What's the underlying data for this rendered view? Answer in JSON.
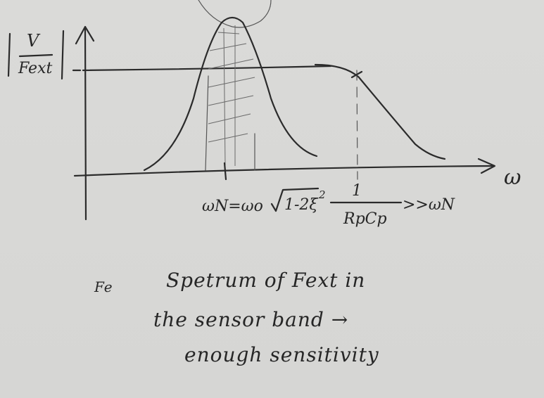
{
  "diagram": {
    "y_axis_label_num": "V",
    "y_axis_label_den": "Fext",
    "x_axis_label": "ω",
    "natural_freq_label": "ωN=ωo",
    "natural_freq_radicand": "1-2ξ",
    "natural_freq_exponent": "2",
    "cutoff_num": "1",
    "cutoff_den": "RpCp",
    "cutoff_relation": ">>ωN"
  },
  "notes": {
    "marker": "Fe",
    "line1": "Spetrum of Fext in",
    "line2": "the sensor band →",
    "line3": "enough sensitivity"
  }
}
